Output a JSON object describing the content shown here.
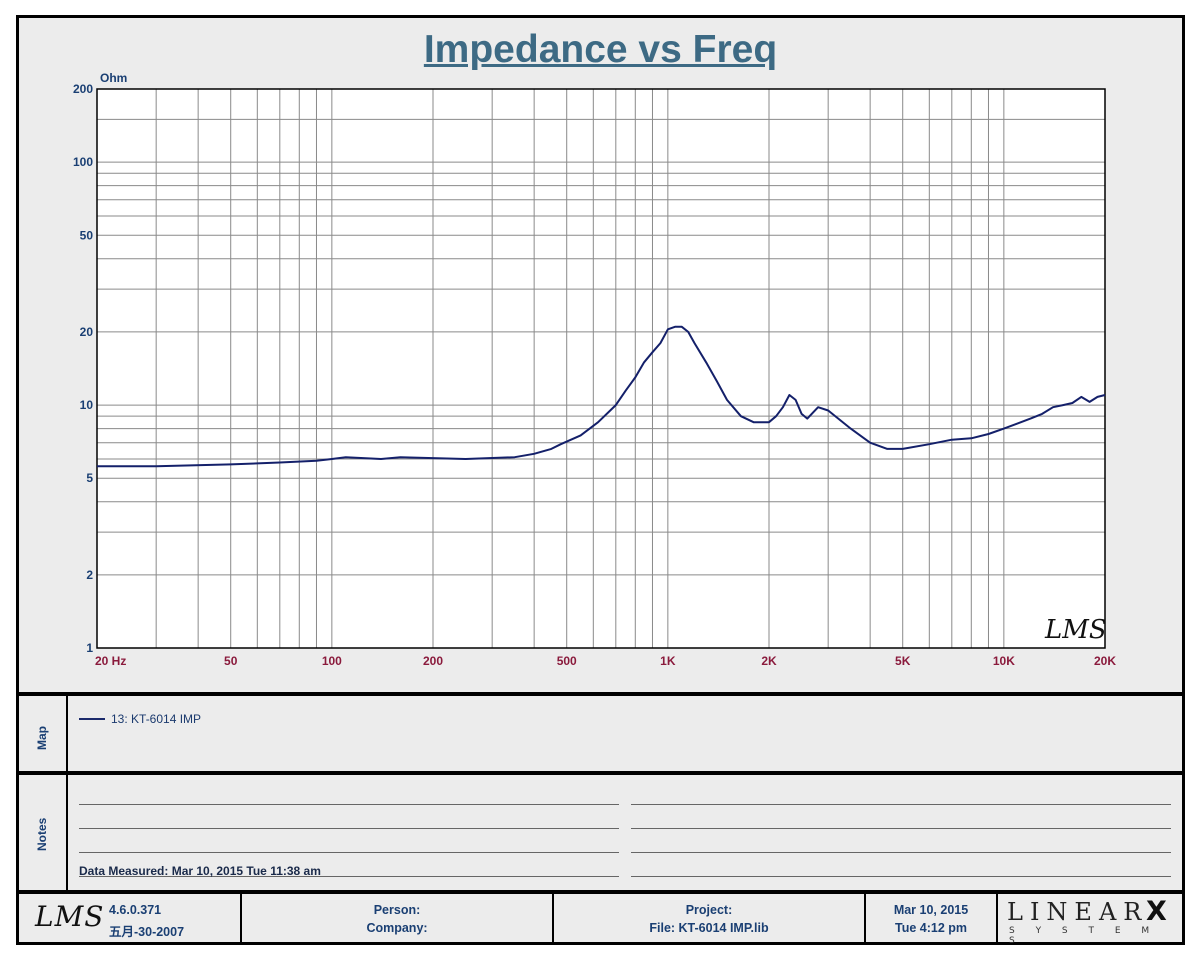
{
  "title": "Impedance vs Freq",
  "chart_data": {
    "type": "line",
    "title": "Impedance vs Freq",
    "ylabel": "Ohm",
    "x_scale": "log",
    "y_scale": "log",
    "xlim": [
      20,
      20000
    ],
    "ylim": [
      1,
      200
    ],
    "grid": true,
    "x_ticks": [
      {
        "v": 20,
        "label": "20  Hz"
      },
      {
        "v": 50,
        "label": "50"
      },
      {
        "v": 100,
        "label": "100"
      },
      {
        "v": 200,
        "label": "200"
      },
      {
        "v": 500,
        "label": "500"
      },
      {
        "v": 1000,
        "label": "1K"
      },
      {
        "v": 2000,
        "label": "2K"
      },
      {
        "v": 5000,
        "label": "5K"
      },
      {
        "v": 10000,
        "label": "10K"
      },
      {
        "v": 20000,
        "label": "20K"
      }
    ],
    "y_ticks": [
      {
        "v": 200,
        "label": "200"
      },
      {
        "v": 100,
        "label": "100"
      },
      {
        "v": 50,
        "label": "50"
      },
      {
        "v": 20,
        "label": "20"
      },
      {
        "v": 10,
        "label": "10"
      },
      {
        "v": 5,
        "label": "5"
      },
      {
        "v": 2,
        "label": "2"
      },
      {
        "v": 1,
        "label": "1"
      }
    ],
    "series": [
      {
        "name": "13: KT-6014  IMP",
        "color": "#14206a",
        "x": [
          20,
          30,
          50,
          70,
          90,
          100,
          110,
          140,
          160,
          250,
          350,
          400,
          450,
          480,
          550,
          620,
          700,
          750,
          800,
          850,
          900,
          950,
          1000,
          1050,
          1100,
          1150,
          1200,
          1300,
          1400,
          1500,
          1650,
          1800,
          2000,
          2100,
          2200,
          2300,
          2400,
          2500,
          2600,
          2800,
          3000,
          3500,
          4000,
          4500,
          5000,
          6000,
          7000,
          8000,
          9000,
          10000,
          12000,
          13000,
          14000,
          15000,
          16000,
          17000,
          18000,
          19000,
          20000
        ],
        "y": [
          5.6,
          5.6,
          5.7,
          5.8,
          5.9,
          6.0,
          6.1,
          6.0,
          6.1,
          6.0,
          6.1,
          6.3,
          6.6,
          6.9,
          7.5,
          8.5,
          10.0,
          11.5,
          13.0,
          15.0,
          16.5,
          18.0,
          20.5,
          21.0,
          21.0,
          20.0,
          18.0,
          15.0,
          12.5,
          10.5,
          9.0,
          8.5,
          8.5,
          9.0,
          9.8,
          11.0,
          10.5,
          9.2,
          8.8,
          9.8,
          9.5,
          8.0,
          7.0,
          6.6,
          6.6,
          6.9,
          7.2,
          7.3,
          7.6,
          8.0,
          8.8,
          9.2,
          9.8,
          10.0,
          10.2,
          10.8,
          10.3,
          10.8,
          11.0
        ]
      }
    ]
  },
  "map": {
    "label": "Map",
    "legend_text": "13: KT-6014  IMP"
  },
  "notes": {
    "label": "Notes",
    "measured": "Data Measured: Mar 10, 2015  Tue 11:38 am"
  },
  "footer": {
    "logo_text": "LMS",
    "chart_logo_text": "LMS",
    "version": "4.6.0.371",
    "build_date": "五月-30-2007",
    "person_label": "Person:",
    "company_label": "Company:",
    "project_label": "Project:",
    "file_label": "File: KT-6014 IMP.lib",
    "date": "Mar 10, 2015",
    "time": "Tue  4:12 pm",
    "brand": "LINEAR",
    "brand_x": "X",
    "brand_sub": "S Y S T E M S"
  }
}
